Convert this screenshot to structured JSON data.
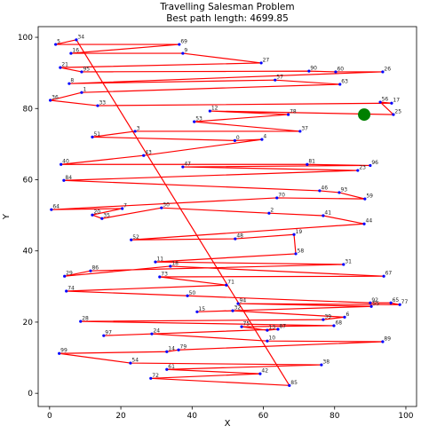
{
  "chart_data": {
    "type": "tsp",
    "title": "Travelling Salesman Problem",
    "subtitle": "Best path length: 4699.85",
    "xlabel": "X",
    "ylabel": "Y",
    "xlim": [
      -3.2,
      103
    ],
    "ylim": [
      -3.7,
      103
    ],
    "xticks": [
      0,
      20,
      40,
      60,
      80,
      100
    ],
    "yticks": [
      0,
      20,
      40,
      60,
      80,
      100
    ],
    "point_color": "blue",
    "path_color": "red",
    "start": {
      "x": 88.3,
      "y": 78.3,
      "color": "green"
    },
    "labels": [
      34,
      5,
      69,
      16,
      9,
      27,
      21,
      95,
      90,
      60,
      26,
      8,
      57,
      63,
      1,
      36,
      33,
      17,
      56,
      25,
      12,
      78,
      53,
      37,
      3,
      51,
      0,
      4,
      43,
      40,
      81,
      96,
      47,
      23,
      84,
      46,
      93,
      59,
      70,
      64,
      7,
      20,
      35,
      30,
      2,
      41,
      44,
      52,
      48,
      19,
      58,
      11,
      31,
      86,
      29,
      18,
      67,
      73,
      71,
      74,
      50,
      92,
      65,
      77,
      94,
      55,
      15,
      32,
      6,
      39,
      28,
      68,
      75,
      13,
      87,
      97,
      24,
      10,
      89,
      79,
      14,
      99,
      54,
      38,
      61,
      42,
      72,
      85
    ],
    "x": [
      7.5,
      1.7,
      36.4,
      6,
      37.4,
      59.4,
      3,
      9,
      72.8,
      80.3,
      93.5,
      5.5,
      63.3,
      81.5,
      9,
      0.2,
      13.5,
      96,
      92.8,
      96.5,
      45,
      67,
      40.6,
      70.3,
      24,
      12,
      52,
      59.6,
      26.4,
      3.2,
      72.3,
      90,
      37.4,
      86.5,
      4,
      75.8,
      81.3,
      88.5,
      63.8,
      0.5,
      20.4,
      12,
      14.7,
      31.4,
      61.6,
      76.8,
      88.3,
      22.9,
      52.1,
      68.6,
      69.1,
      29.7,
      82.5,
      11.5,
      4.2,
      33.9,
      93.8,
      30.9,
      49.6,
      4.7,
      38.7,
      90,
      95.8,
      98.3,
      52.9,
      90.3,
      41.4,
      51.4,
      82.8,
      76.8,
      8.7,
      79.8,
      53.9,
      61.1,
      64.1,
      15.2,
      28.7,
      61.1,
      93.5,
      36.2,
      32.9,
      2.7,
      22.7,
      76.3,
      32.9,
      59.1,
      28.4,
      67.3
    ],
    "y": [
      99.3,
      98,
      98,
      95.5,
      95.5,
      92.8,
      91.5,
      90.3,
      90.5,
      90.3,
      90.3,
      87,
      88,
      86.8,
      84.5,
      82.3,
      80.8,
      81.5,
      81.8,
      78.3,
      79.3,
      78.3,
      76.3,
      73.6,
      73.6,
      72,
      71,
      71.3,
      66.8,
      64.3,
      64.3,
      64,
      63.6,
      62.6,
      59.8,
      56.9,
      56.4,
      54.6,
      54.9,
      51.6,
      51.9,
      50.1,
      49.1,
      52.1,
      50.6,
      49.9,
      47.6,
      43.1,
      43.4,
      44.6,
      39.2,
      36.9,
      36.2,
      34.4,
      32.9,
      35.7,
      32.9,
      32.7,
      30.4,
      28.7,
      27.4,
      25.4,
      25.4,
      24.9,
      25.2,
      24.4,
      22.9,
      23.2,
      21.4,
      20.7,
      20.2,
      19,
      18.7,
      17.7,
      18,
      16.2,
      16.7,
      14.7,
      14.5,
      12.2,
      11.7,
      11.2,
      8.5,
      8,
      6.7,
      5.5,
      4.2,
      2.2
    ]
  }
}
